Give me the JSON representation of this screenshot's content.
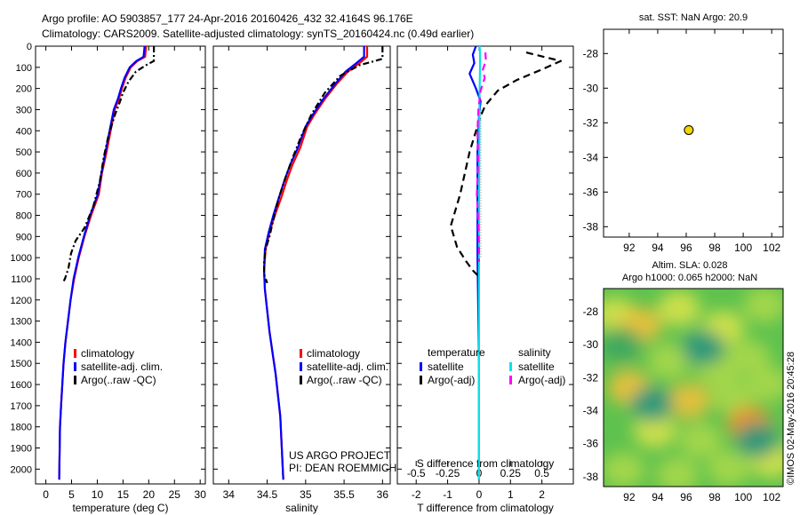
{
  "header": {
    "line1": "Argo profile: AO 5903857_177 24-Apr-2016 20160426_432 32.4164S 96.176E",
    "line2": "Climatology: CARS2009. Satellite-adjusted climatology: synTS_20160424.nc (0.49d earlier)"
  },
  "side_label": "©IMOS 02-May-2016 20:45:28",
  "colors": {
    "climatology": "#ff0000",
    "satellite": "#0000ff",
    "argo": "#000000",
    "sat_s": "#00e5e5",
    "argo_s": "#ff00ff",
    "marker": "#f2d600"
  },
  "chart_data": [
    {
      "type": "line",
      "xlabel": "temperature (deg C)",
      "ylabel": "",
      "xlim": [
        -2,
        31
      ],
      "ylim": [
        0,
        2070
      ],
      "xticks": [
        0,
        5,
        10,
        15,
        20,
        25,
        30
      ],
      "yticks": [
        0,
        100,
        200,
        300,
        400,
        500,
        600,
        700,
        800,
        900,
        1000,
        1100,
        1200,
        1300,
        1400,
        1500,
        1600,
        1700,
        1800,
        1900,
        2000
      ],
      "legend": [
        "climatology",
        "satellite-adj. clim.",
        "Argo(..raw -QC)"
      ],
      "series": [
        {
          "name": "climatology",
          "style": "solid",
          "color": "#ff0000",
          "x": [
            19.5,
            19.3,
            17.8,
            16.5,
            15.5,
            14.8,
            14.2,
            13.4,
            12.6,
            11.8,
            10.9,
            10.3,
            8.8,
            7.5,
            6.4,
            5.5,
            4.8,
            4.3,
            3.8,
            3.45,
            3.2,
            2.95,
            2.75,
            2.6
          ],
          "y": [
            0,
            50,
            70,
            100,
            150,
            200,
            250,
            300,
            400,
            500,
            600,
            700,
            800,
            900,
            1000,
            1100,
            1200,
            1300,
            1400,
            1500,
            1600,
            1700,
            1800,
            2050
          ]
        },
        {
          "name": "satellite-adj. clim.",
          "style": "solid",
          "color": "#0000ff",
          "x": [
            19.2,
            19.0,
            17.6,
            16.3,
            15.3,
            14.6,
            14.0,
            13.2,
            12.4,
            11.6,
            10.8,
            10.1,
            8.6,
            7.4,
            6.3,
            5.4,
            4.8,
            4.3,
            3.8,
            3.45,
            3.2,
            2.95,
            2.75,
            2.6
          ],
          "y": [
            0,
            50,
            70,
            100,
            150,
            200,
            250,
            300,
            400,
            500,
            600,
            700,
            800,
            900,
            1000,
            1100,
            1200,
            1300,
            1400,
            1500,
            1600,
            1700,
            1800,
            2050
          ]
        },
        {
          "name": "Argo(..raw -QC)",
          "style": "dashdot",
          "color": "#000000",
          "x": [
            21,
            21,
            19.5,
            17.5,
            16,
            15,
            14.3,
            13.5,
            12.2,
            11.3,
            10.5,
            9.2,
            7.5,
            5.8,
            4.9,
            4.4,
            4.0,
            3.7,
            3.5,
            3.3
          ],
          "y": [
            0,
            70,
            90,
            120,
            170,
            220,
            270,
            320,
            420,
            520,
            640,
            760,
            860,
            920,
            980,
            1050,
            1080,
            1100,
            1110,
            1120
          ]
        }
      ]
    },
    {
      "type": "line",
      "xlabel": "salinity",
      "ylabel": "",
      "xlim": [
        33.8,
        36.1
      ],
      "ylim": [
        0,
        2070
      ],
      "xticks": [
        34,
        34.5,
        35,
        35.5,
        36
      ],
      "xticklabels": [
        "34",
        "34.5",
        "35",
        "35.5",
        "36"
      ],
      "legend": [
        "climatology",
        "satellite-adj. clim.",
        "Argo(..raw -QC)"
      ],
      "annotation": [
        "US ARGO PROJECT",
        "PI: DEAN ROEMMICH"
      ],
      "series": [
        {
          "name": "climatology",
          "style": "solid",
          "color": "#ff0000",
          "x": [
            35.8,
            35.8,
            35.7,
            35.55,
            35.4,
            35.25,
            35.12,
            35.02,
            34.93,
            34.83,
            34.75,
            34.68,
            34.6,
            34.53,
            34.48,
            34.46,
            34.47,
            34.5,
            34.53,
            34.57,
            34.61,
            34.64,
            34.67,
            34.69,
            34.71
          ],
          "y": [
            0,
            50,
            80,
            120,
            180,
            250,
            320,
            380,
            480,
            560,
            640,
            720,
            800,
            880,
            960,
            1060,
            1150,
            1250,
            1350,
            1450,
            1550,
            1650,
            1750,
            1900,
            2050
          ]
        },
        {
          "name": "satellite-adj. clim.",
          "style": "solid",
          "color": "#0000ff",
          "x": [
            35.76,
            35.76,
            35.66,
            35.52,
            35.38,
            35.23,
            35.1,
            35.0,
            34.9,
            34.8,
            34.72,
            34.65,
            34.58,
            34.52,
            34.47,
            34.46,
            34.47,
            34.5,
            34.53,
            34.57,
            34.61,
            34.64,
            34.67,
            34.69,
            34.71
          ],
          "y": [
            0,
            50,
            80,
            120,
            180,
            250,
            320,
            380,
            480,
            560,
            640,
            720,
            800,
            880,
            960,
            1060,
            1150,
            1250,
            1350,
            1450,
            1550,
            1650,
            1750,
            1900,
            2050
          ]
        },
        {
          "name": "Argo(..raw -QC)",
          "style": "dashdot",
          "color": "#000000",
          "x": [
            36.0,
            36.0,
            35.7,
            35.45,
            35.25,
            35.08,
            34.95,
            34.84,
            34.74,
            34.65,
            34.58,
            34.53,
            34.48,
            34.46,
            34.46,
            34.5
          ],
          "y": [
            0,
            60,
            90,
            140,
            220,
            320,
            420,
            520,
            620,
            720,
            820,
            900,
            960,
            1020,
            1080,
            1120
          ]
        }
      ]
    },
    {
      "type": "line",
      "xlabel": "T difference from climatology",
      "top_xlabel": "S difference from climatology",
      "ylabel": "",
      "xlim": [
        -2.6,
        3.0
      ],
      "ylim": [
        0,
        2070
      ],
      "xticks": [
        -2,
        -1,
        0,
        1,
        2
      ],
      "top_xticks": [
        -0.5,
        -0.25,
        0,
        0.25,
        0.5
      ],
      "top_xticklabels": [
        "-0.5",
        "-0.25",
        "0",
        "0.25",
        "0.5"
      ],
      "legend_left": {
        "title": "temperature",
        "items": [
          "satellite",
          "Argo(-adj)"
        ]
      },
      "legend_right": {
        "title": "salinity",
        "items": [
          "satellite",
          "Argo(-adj)"
        ]
      },
      "series": [
        {
          "name": "temperature satellite",
          "style": "solid",
          "color": "#0000ff",
          "x": [
            -0.1,
            -0.2,
            -0.15,
            -0.3,
            -0.1,
            0.05,
            0.0,
            -0.05,
            -0.05,
            0.0,
            0.0
          ],
          "y": [
            0,
            40,
            80,
            130,
            200,
            260,
            330,
            500,
            1000,
            1500,
            2050
          ]
        },
        {
          "name": "temperature Argo(-adj)",
          "style": "dashed",
          "color": "#000000",
          "x": [
            1.5,
            2.6,
            2.0,
            1.2,
            0.6,
            0.2,
            0.05,
            -0.3,
            -0.6,
            -0.9,
            -0.7,
            -0.4,
            -0.2,
            0.0
          ],
          "y": [
            30,
            70,
            110,
            160,
            210,
            280,
            330,
            500,
            700,
            850,
            950,
            1020,
            1060,
            1090
          ]
        },
        {
          "name": "salinity satellite",
          "style": "solid",
          "color": "#00e5e5",
          "x": [
            0.02,
            0.03,
            0.03,
            0.02,
            0.01,
            0.0,
            0.0,
            0.0
          ],
          "y": [
            0,
            40,
            100,
            200,
            330,
            700,
            1500,
            2050
          ]
        },
        {
          "name": "salinity Argo(-adj)",
          "style": "dashed",
          "color": "#ff00ff",
          "x": [
            0.2,
            0.22,
            0.12,
            0.18,
            0.05,
            -0.02,
            -0.05,
            -0.03,
            -0.07,
            -0.02,
            0.0,
            0.0
          ],
          "y": [
            30,
            70,
            110,
            150,
            210,
            300,
            400,
            550,
            700,
            850,
            950,
            1020
          ]
        }
      ]
    },
    {
      "type": "scatter",
      "title": "sat. SST: NaN Argo: 20.9",
      "xlim": [
        90.2,
        102.8
      ],
      "ylim": [
        -38.6,
        -26.6
      ],
      "xticks": [
        92,
        94,
        96,
        98,
        100,
        102
      ],
      "yticks": [
        -28,
        -30,
        -32,
        -34,
        -36,
        -38
      ],
      "points": [
        {
          "x": 96.18,
          "y": -32.42
        }
      ]
    },
    {
      "type": "heatmap",
      "title_lines": [
        "Altim. SLA: 0.028",
        "Argo h1000: 0.065 h2000: NaN"
      ],
      "xlim": [
        90.2,
        102.8
      ],
      "ylim": [
        -38.6,
        -26.6
      ],
      "xticks": [
        92,
        94,
        96,
        98,
        100,
        102
      ],
      "yticks": [
        -28,
        -30,
        -32,
        -34,
        -36,
        -38
      ],
      "cells": [
        {
          "x": 91.0,
          "y": -28.2,
          "v": 0.6
        },
        {
          "x": 92.8,
          "y": -28.8,
          "v": 0.9
        },
        {
          "x": 95.5,
          "y": -27.8,
          "v": 0.7
        },
        {
          "x": 98.6,
          "y": -29.0,
          "v": 0.7
        },
        {
          "x": 101.5,
          "y": -27.6,
          "v": 0.5
        },
        {
          "x": 94.8,
          "y": -31.0,
          "v": 0.45
        },
        {
          "x": 98.2,
          "y": -31.6,
          "v": 0.4
        },
        {
          "x": 100.4,
          "y": -30.8,
          "v": 0.5
        },
        {
          "x": 92.0,
          "y": -32.6,
          "v": 0.85
        },
        {
          "x": 96.2,
          "y": -33.4,
          "v": 0.85
        },
        {
          "x": 99.3,
          "y": -33.2,
          "v": 0.55
        },
        {
          "x": 101.8,
          "y": -32.4,
          "v": 0.45
        },
        {
          "x": 93.8,
          "y": -35.2,
          "v": 0.6
        },
        {
          "x": 97.0,
          "y": -35.8,
          "v": 0.55
        },
        {
          "x": 100.4,
          "y": -34.8,
          "v": 1.0
        },
        {
          "x": 91.6,
          "y": -37.6,
          "v": 0.5
        },
        {
          "x": 95.4,
          "y": -37.9,
          "v": 0.4
        },
        {
          "x": 99.0,
          "y": -37.5,
          "v": 0.45
        },
        {
          "x": 102.0,
          "y": -37.0,
          "v": 0.6
        },
        {
          "x": 97.2,
          "y": -30.2,
          "v": 0.2
        },
        {
          "x": 93.6,
          "y": -33.6,
          "v": 0.2
        },
        {
          "x": 91.4,
          "y": -30.0,
          "v": 0.25
        },
        {
          "x": 101.0,
          "y": -35.8,
          "v": 0.15
        }
      ]
    }
  ]
}
